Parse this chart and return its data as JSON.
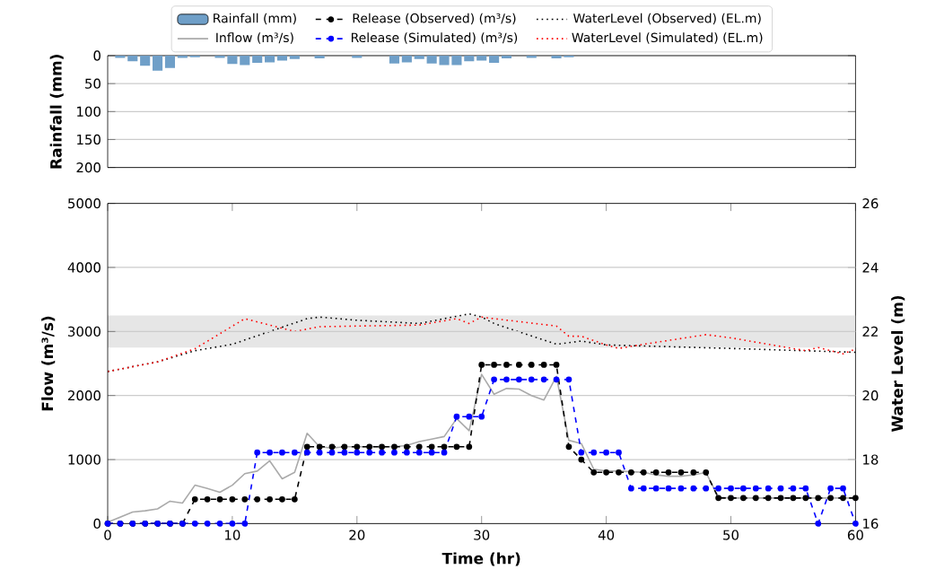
{
  "chart_data": [
    {
      "type": "bar",
      "ylabel": "Rainfall (mm)",
      "xlim": [
        0,
        60
      ],
      "ylim": [
        200,
        0
      ],
      "yticks": [
        0,
        50,
        100,
        150,
        200
      ],
      "grid": "y",
      "legend": "top",
      "tick_labels": "y",
      "x": [
        0,
        1,
        2,
        3,
        4,
        5,
        6,
        7,
        8,
        9,
        10,
        11,
        12,
        13,
        14,
        15,
        16,
        17,
        18,
        19,
        20,
        21,
        22,
        23,
        24,
        25,
        26,
        27,
        28,
        29,
        30,
        31,
        32,
        33,
        34,
        35,
        36,
        37,
        38,
        39,
        40,
        41,
        42,
        43,
        44,
        45,
        46,
        47,
        48,
        49,
        50,
        51,
        52,
        53,
        54,
        55,
        56,
        57,
        58,
        59,
        60
      ],
      "series": [
        {
          "name": "Rainfall (mm)",
          "color": "#6f9fc8",
          "values": [
            0,
            4,
            10,
            18,
            27,
            22,
            4,
            3,
            0,
            4,
            15,
            17,
            13,
            12,
            9,
            6,
            0,
            5,
            0,
            0,
            4,
            0,
            0,
            14,
            12,
            6,
            14,
            17,
            17,
            10,
            9,
            13,
            5,
            0,
            4,
            0,
            5,
            3,
            0,
            0,
            0,
            0,
            0,
            0,
            0,
            0,
            0,
            0,
            0,
            0,
            0,
            0,
            0,
            0,
            0,
            0,
            0,
            0,
            0,
            0,
            0
          ]
        }
      ]
    },
    {
      "type": "line",
      "xlabel": "Time (hr)",
      "ylabel": "Flow (m³/s)",
      "y2label": "Water Level (m)",
      "xlim": [
        0,
        60
      ],
      "xticks": [
        0,
        10,
        20,
        30,
        40,
        50,
        60
      ],
      "ylim": [
        0,
        5000
      ],
      "yticks": [
        0,
        1000,
        2000,
        3000,
        4000,
        5000
      ],
      "y2lim": [
        16,
        26
      ],
      "y2ticks": [
        16,
        18,
        20,
        22,
        24,
        26
      ],
      "grid": "y",
      "bands": [
        {
          "axis": "y2",
          "from": 21.5,
          "to": 22.5,
          "color": "#e6e6e6"
        }
      ],
      "series": [
        {
          "name": "Inflow (m³/s)",
          "color": "#aaaaaa",
          "line_style": "solid",
          "x": [
            0,
            1,
            2,
            3,
            4,
            5,
            6,
            7,
            8,
            9,
            10,
            11,
            12,
            13,
            14,
            15,
            16,
            17,
            18,
            19,
            20,
            21,
            22,
            23,
            24,
            25,
            26,
            27,
            28,
            29,
            30,
            31,
            32,
            33,
            34,
            35,
            36,
            37,
            38,
            39,
            40,
            41,
            42,
            43,
            44,
            45,
            46,
            47,
            48,
            49,
            50,
            51,
            52,
            53,
            54,
            55,
            56,
            57,
            58,
            59,
            60
          ],
          "values": [
            20,
            100,
            180,
            200,
            230,
            350,
            320,
            600,
            550,
            490,
            600,
            780,
            820,
            980,
            700,
            800,
            1410,
            1200,
            1180,
            1200,
            1200,
            1200,
            1200,
            1200,
            1220,
            1280,
            1320,
            1360,
            1640,
            1450,
            2330,
            2020,
            2110,
            2100,
            2000,
            1930,
            2300,
            1300,
            1250,
            850,
            820,
            820,
            810,
            800,
            760,
            740,
            740,
            760,
            800,
            410,
            400,
            400,
            400,
            400,
            400,
            400,
            400,
            400,
            400,
            400,
            400
          ]
        },
        {
          "name": "Release (Observed) (m³/s)",
          "color": "#000000",
          "line_style": "dashed",
          "marker": "circle",
          "x": [
            0,
            1,
            2,
            3,
            4,
            5,
            6,
            7,
            8,
            9,
            10,
            11,
            12,
            13,
            14,
            15,
            16,
            17,
            18,
            19,
            20,
            21,
            22,
            23,
            24,
            25,
            26,
            27,
            28,
            29,
            30,
            31,
            32,
            33,
            34,
            35,
            36,
            37,
            38,
            39,
            40,
            41,
            42,
            43,
            44,
            45,
            46,
            47,
            48,
            49,
            50,
            51,
            52,
            53,
            54,
            55,
            56,
            57,
            58,
            59,
            60
          ],
          "values": [
            0,
            0,
            0,
            0,
            0,
            0,
            0,
            380,
            380,
            380,
            380,
            380,
            380,
            380,
            380,
            380,
            1200,
            1200,
            1200,
            1200,
            1200,
            1200,
            1200,
            1200,
            1200,
            1200,
            1200,
            1200,
            1200,
            1200,
            2480,
            2480,
            2480,
            2480,
            2480,
            2480,
            2480,
            1200,
            1000,
            800,
            800,
            800,
            800,
            800,
            800,
            800,
            800,
            800,
            800,
            400,
            400,
            400,
            400,
            400,
            400,
            400,
            400,
            400,
            400,
            400,
            400
          ]
        },
        {
          "name": "Release (Simulated) (m³/s)",
          "color": "#0000ff",
          "line_style": "dashed",
          "marker": "circle",
          "x": [
            0,
            1,
            2,
            3,
            4,
            5,
            6,
            7,
            8,
            9,
            10,
            11,
            12,
            13,
            14,
            15,
            16,
            17,
            18,
            19,
            20,
            21,
            22,
            23,
            24,
            25,
            26,
            27,
            28,
            29,
            30,
            31,
            32,
            33,
            34,
            35,
            36,
            37,
            38,
            39,
            40,
            41,
            42,
            43,
            44,
            45,
            46,
            47,
            48,
            49,
            50,
            51,
            52,
            53,
            54,
            55,
            56,
            57,
            58,
            59,
            60
          ],
          "values": [
            0,
            0,
            0,
            0,
            0,
            0,
            0,
            0,
            0,
            0,
            0,
            0,
            1110,
            1110,
            1110,
            1110,
            1110,
            1110,
            1110,
            1110,
            1110,
            1110,
            1110,
            1110,
            1110,
            1110,
            1110,
            1110,
            1670,
            1670,
            1670,
            2250,
            2250,
            2250,
            2250,
            2250,
            2250,
            2250,
            1110,
            1110,
            1110,
            1110,
            550,
            550,
            550,
            550,
            550,
            550,
            550,
            550,
            550,
            550,
            550,
            550,
            550,
            550,
            550,
            0,
            550,
            550,
            0
          ]
        },
        {
          "name": "WaterLevel (Observed) (EL.m)",
          "color": "#000000",
          "line_style": "dotted",
          "axis": "y2",
          "x": [
            0,
            4,
            7,
            10,
            13,
            16,
            17,
            20,
            25,
            29,
            30,
            31,
            36,
            38,
            40,
            50,
            60
          ],
          "values": [
            20.75,
            21.05,
            21.4,
            21.6,
            22.0,
            22.4,
            22.45,
            22.35,
            22.25,
            22.55,
            22.45,
            22.25,
            21.6,
            21.7,
            21.58,
            21.47,
            21.35
          ]
        },
        {
          "name": "WaterLevel (Simulated) (EL.m)",
          "color": "#ff0000",
          "line_style": "dotted",
          "axis": "y2",
          "x": [
            0,
            4,
            7,
            11,
            15,
            17,
            25,
            28,
            29,
            30,
            31,
            36,
            37,
            38,
            40,
            41,
            43,
            48,
            50,
            56,
            57,
            59,
            60
          ],
          "values": [
            20.75,
            21.05,
            21.46,
            22.4,
            22.0,
            22.15,
            22.2,
            22.4,
            22.25,
            22.45,
            22.4,
            22.17,
            21.85,
            21.85,
            21.58,
            21.47,
            21.6,
            21.9,
            21.8,
            21.4,
            21.5,
            21.3,
            21.45
          ]
        }
      ]
    }
  ]
}
